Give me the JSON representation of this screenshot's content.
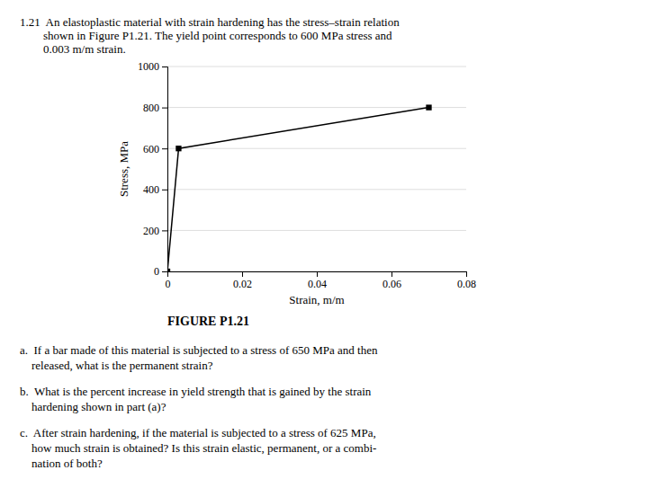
{
  "chart_data": {
    "type": "line",
    "title": [
      "1.21  An elastoplastic material with strain hardening has the stress–strain relation",
      "        shown in Figure P1.21. The yield point corresponds to 600 MPa stress and",
      "        0.003 m/m strain."
    ],
    "x_label": "Strain, m/m",
    "y_label": "Stress, MPa",
    "xlim": [
      0,
      0.08
    ],
    "ylim": [
      0,
      1000
    ],
    "xticks": [
      0,
      0.02,
      0.04,
      0.06,
      0.08
    ],
    "yticks": [
      0,
      200,
      400,
      600,
      800,
      1000
    ],
    "grid": "y",
    "series": [
      {
        "x": [
          0,
          0.003,
          0.07
        ],
        "values": [
          0,
          600,
          800
        ],
        "color": "#000000",
        "marker": "square",
        "line_style": "solid"
      }
    ],
    "annotations": [
      "FIGURE P1.21",
      "a.  If a bar made of this material is subjected to a stress of 650 MPa and then\n    released, what is the permanent strain?",
      "b.  What is the percent increase in yield strength that is gained by the strain\n    hardening shown in part (a)?",
      "c.  After strain hardening, if the material is subjected to a stress of 625 MPa,\n    how much strain is obtained? Is this strain elastic, permanent, or a combi-\n    nation of both?"
    ]
  }
}
